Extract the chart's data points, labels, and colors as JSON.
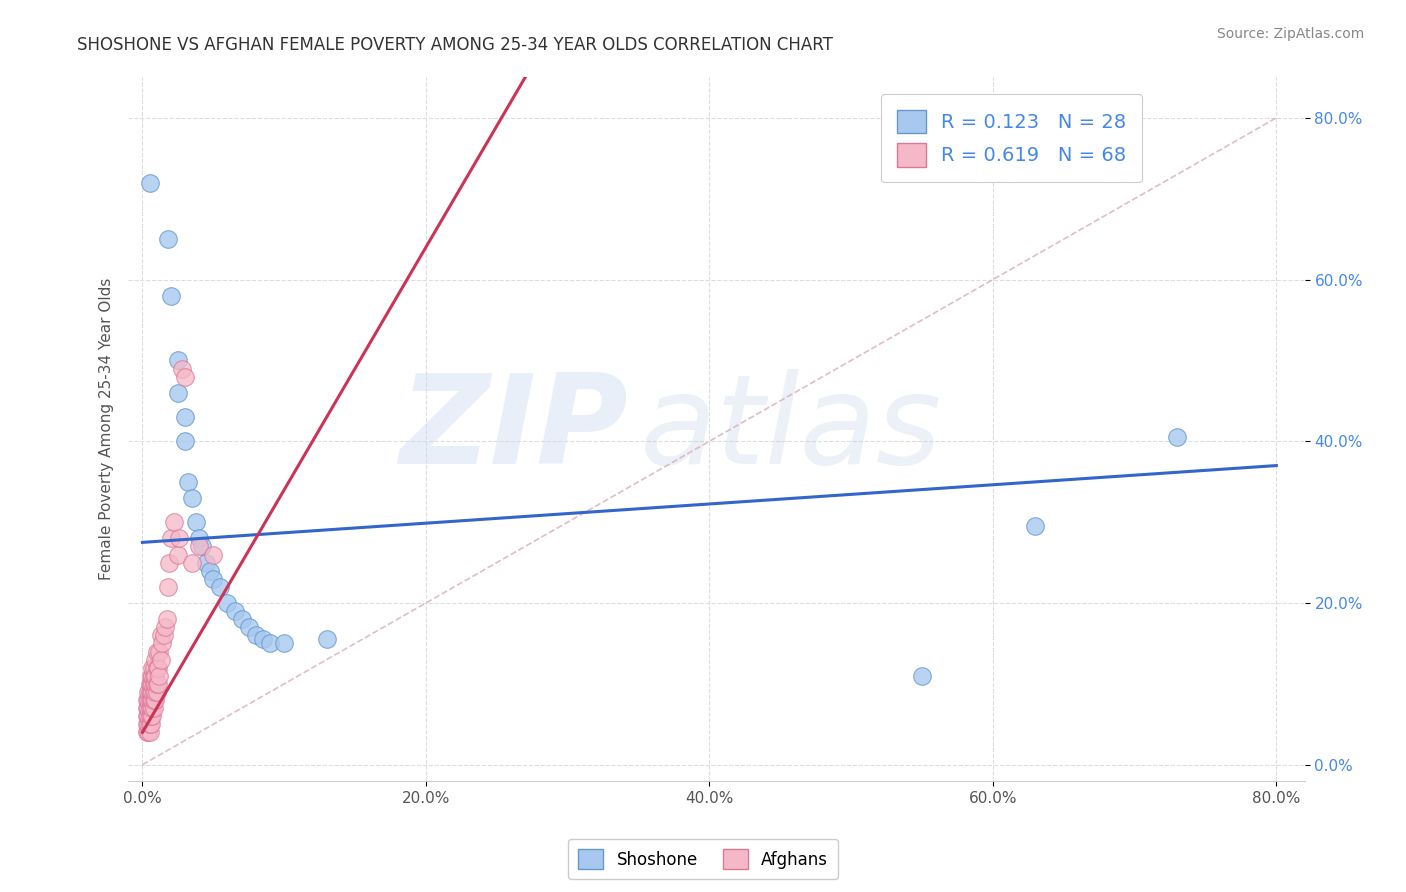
{
  "title": "SHOSHONE VS AFGHAN FEMALE POVERTY AMONG 25-34 YEAR OLDS CORRELATION CHART",
  "source": "Source: ZipAtlas.com",
  "ylabel": "Female Poverty Among 25-34 Year Olds",
  "xlim": [
    -0.01,
    0.82
  ],
  "ylim": [
    -0.02,
    0.85
  ],
  "xticks": [
    0.0,
    0.2,
    0.4,
    0.6,
    0.8
  ],
  "yticks": [
    0.0,
    0.2,
    0.4,
    0.6,
    0.8
  ],
  "xticklabels": [
    "0.0%",
    "20.0%",
    "40.0%",
    "60.0%",
    "80.0%"
  ],
  "yticklabels": [
    "0.0%",
    "20.0%",
    "40.0%",
    "60.0%",
    "80.0%"
  ],
  "shoshone_color": "#a8c8f0",
  "shoshone_edge": "#6699cc",
  "afghan_color": "#f5b8c8",
  "afghan_edge": "#dd7799",
  "shoshone_R": 0.123,
  "shoshone_N": 28,
  "afghan_R": 0.619,
  "afghan_N": 68,
  "legend_label1": "Shoshone",
  "legend_label2": "Afghans",
  "watermark_zip": "ZIP",
  "watermark_atlas": "atlas",
  "background_color": "#ffffff",
  "grid_color": "#dddddd",
  "trend_blue": "#3366cc",
  "trend_pink": "#cc3355",
  "diag_color": "#e8b0c0",
  "title_color": "#333333",
  "source_color": "#888888",
  "ylabel_color": "#555555",
  "ytick_color": "#4488ee",
  "xtick_color": "#555555",
  "legend_text_color": "#4488ee",
  "shoshone_scatter": [
    [
      0.005,
      0.72
    ],
    [
      0.018,
      0.65
    ],
    [
      0.02,
      0.58
    ],
    [
      0.025,
      0.5
    ],
    [
      0.025,
      0.46
    ],
    [
      0.03,
      0.43
    ],
    [
      0.03,
      0.4
    ],
    [
      0.032,
      0.35
    ],
    [
      0.035,
      0.33
    ],
    [
      0.038,
      0.3
    ],
    [
      0.04,
      0.28
    ],
    [
      0.042,
      0.27
    ],
    [
      0.045,
      0.25
    ],
    [
      0.048,
      0.24
    ],
    [
      0.05,
      0.23
    ],
    [
      0.055,
      0.22
    ],
    [
      0.06,
      0.2
    ],
    [
      0.065,
      0.19
    ],
    [
      0.07,
      0.18
    ],
    [
      0.075,
      0.17
    ],
    [
      0.08,
      0.16
    ],
    [
      0.085,
      0.155
    ],
    [
      0.09,
      0.15
    ],
    [
      0.1,
      0.15
    ],
    [
      0.13,
      0.155
    ],
    [
      0.55,
      0.11
    ],
    [
      0.63,
      0.295
    ],
    [
      0.73,
      0.405
    ]
  ],
  "afghan_scatter": [
    [
      0.003,
      0.04
    ],
    [
      0.003,
      0.05
    ],
    [
      0.003,
      0.06
    ],
    [
      0.003,
      0.07
    ],
    [
      0.003,
      0.08
    ],
    [
      0.004,
      0.04
    ],
    [
      0.004,
      0.05
    ],
    [
      0.004,
      0.06
    ],
    [
      0.004,
      0.07
    ],
    [
      0.004,
      0.08
    ],
    [
      0.004,
      0.09
    ],
    [
      0.005,
      0.04
    ],
    [
      0.005,
      0.05
    ],
    [
      0.005,
      0.06
    ],
    [
      0.005,
      0.07
    ],
    [
      0.005,
      0.08
    ],
    [
      0.005,
      0.09
    ],
    [
      0.005,
      0.1
    ],
    [
      0.006,
      0.05
    ],
    [
      0.006,
      0.06
    ],
    [
      0.006,
      0.07
    ],
    [
      0.006,
      0.08
    ],
    [
      0.006,
      0.09
    ],
    [
      0.006,
      0.1
    ],
    [
      0.006,
      0.11
    ],
    [
      0.007,
      0.06
    ],
    [
      0.007,
      0.07
    ],
    [
      0.007,
      0.08
    ],
    [
      0.007,
      0.09
    ],
    [
      0.007,
      0.1
    ],
    [
      0.007,
      0.11
    ],
    [
      0.007,
      0.12
    ],
    [
      0.008,
      0.07
    ],
    [
      0.008,
      0.08
    ],
    [
      0.008,
      0.09
    ],
    [
      0.008,
      0.1
    ],
    [
      0.008,
      0.11
    ],
    [
      0.008,
      0.12
    ],
    [
      0.009,
      0.08
    ],
    [
      0.009,
      0.09
    ],
    [
      0.009,
      0.1
    ],
    [
      0.009,
      0.11
    ],
    [
      0.009,
      0.13
    ],
    [
      0.01,
      0.09
    ],
    [
      0.01,
      0.1
    ],
    [
      0.01,
      0.12
    ],
    [
      0.01,
      0.14
    ],
    [
      0.011,
      0.1
    ],
    [
      0.011,
      0.12
    ],
    [
      0.012,
      0.11
    ],
    [
      0.012,
      0.14
    ],
    [
      0.013,
      0.13
    ],
    [
      0.013,
      0.16
    ],
    [
      0.014,
      0.15
    ],
    [
      0.015,
      0.16
    ],
    [
      0.016,
      0.17
    ],
    [
      0.017,
      0.18
    ],
    [
      0.018,
      0.22
    ],
    [
      0.019,
      0.25
    ],
    [
      0.02,
      0.28
    ],
    [
      0.022,
      0.3
    ],
    [
      0.025,
      0.26
    ],
    [
      0.026,
      0.28
    ],
    [
      0.028,
      0.49
    ],
    [
      0.03,
      0.48
    ],
    [
      0.035,
      0.25
    ],
    [
      0.04,
      0.27
    ],
    [
      0.05,
      0.26
    ]
  ]
}
